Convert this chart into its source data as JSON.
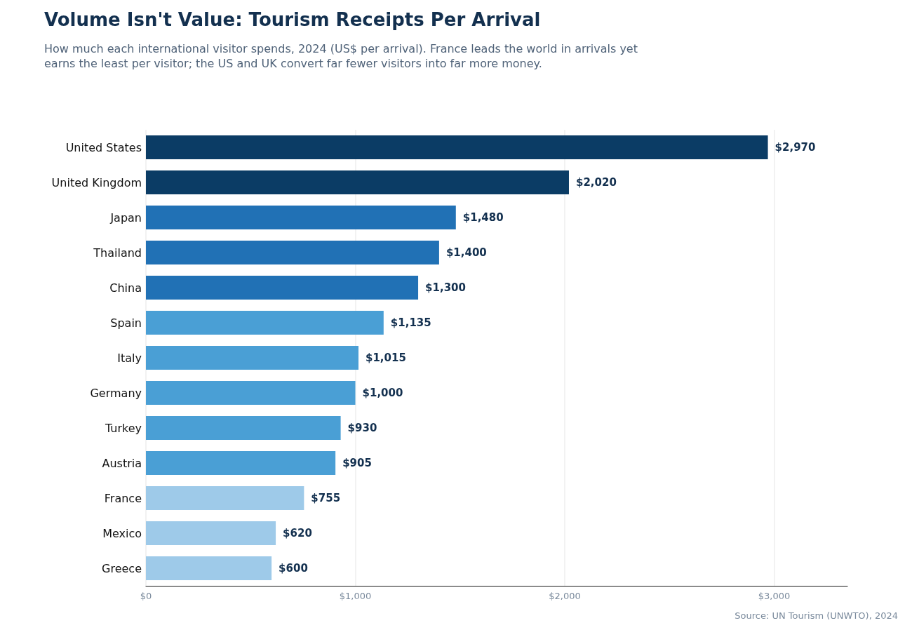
{
  "chart_data": {
    "type": "bar",
    "orientation": "horizontal",
    "title": "Volume Isn't Value: Tourism Receipts Per Arrival",
    "subtitle": "How much each international visitor spends, 2024 (US$ per arrival). France leads the world in arrivals yet earns the least per visitor; the US and UK convert far fewer visitors into far more money.",
    "categories": [
      "United States",
      "United Kingdom",
      "Japan",
      "Thailand",
      "China",
      "Spain",
      "Italy",
      "Germany",
      "Turkey",
      "Austria",
      "France",
      "Mexico",
      "Greece"
    ],
    "values": [
      2970,
      2020,
      1480,
      1400,
      1300,
      1135,
      1015,
      1000,
      930,
      905,
      755,
      620,
      600
    ],
    "colors": [
      "#0b3c65",
      "#0b3c65",
      "#2171b5",
      "#2171b5",
      "#2171b5",
      "#4a9fd5",
      "#4a9fd5",
      "#4a9fd5",
      "#4a9fd5",
      "#4a9fd5",
      "#9ecae9",
      "#9ecae9",
      "#9ecae9"
    ],
    "value_labels": [
      "$2,970",
      "$2,020",
      "$1,480",
      "$1,400",
      "$1,300",
      "$1,135",
      "$1,015",
      "$1,000",
      "$930",
      "$905",
      "$755",
      "$620",
      "$600"
    ],
    "xlim": [
      0,
      3350
    ],
    "xticks": [
      {
        "value": 0,
        "label": "$0"
      },
      {
        "value": 1000,
        "label": "$1,000"
      },
      {
        "value": 2000,
        "label": "$2,000"
      },
      {
        "value": 3000,
        "label": "$3,000"
      }
    ],
    "grid": "x",
    "annotations": [
      "Source: UN Tourism (UNWTO), 2024"
    ]
  }
}
